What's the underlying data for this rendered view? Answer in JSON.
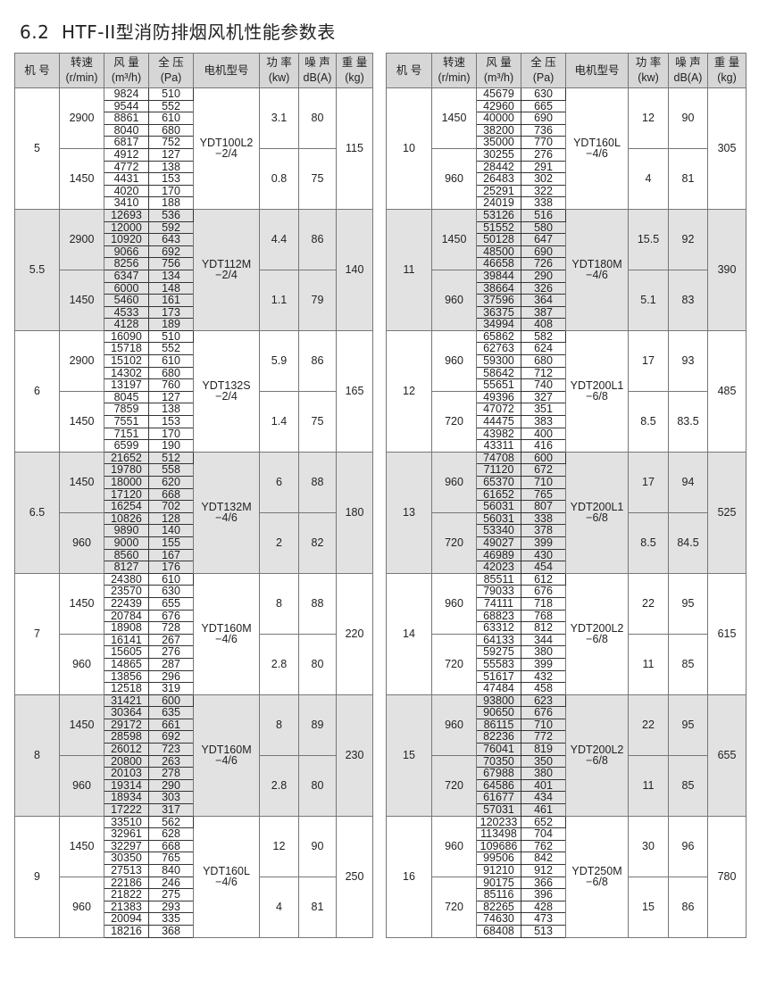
{
  "title": "6.2  HTF-II型消防排烟风机性能参数表",
  "headers": [
    [
      "机 号"
    ],
    [
      "转速",
      "(r/min)"
    ],
    [
      "风 量",
      "(m³/h)"
    ],
    [
      "全 压",
      "(Pa)"
    ],
    [
      "电机型号"
    ],
    [
      "功 率",
      "(kw)"
    ],
    [
      "噪 声",
      "dB(A)"
    ],
    [
      "重 量",
      "(kg)"
    ]
  ],
  "colors": {
    "header_bg": "#d6d6d6",
    "shade_bg": "#e2e2e2",
    "border": "#777777"
  },
  "tables": [
    {
      "machines": [
        {
          "no": "5",
          "motor": [
            "YDT100L2",
            "−2/4"
          ],
          "weight": "115",
          "speeds": [
            {
              "rpm": "2900",
              "power": "3.1",
              "noise": "80",
              "points": [
                [
                  "9824",
                  "510"
                ],
                [
                  "9544",
                  "552"
                ],
                [
                  "8861",
                  "610"
                ],
                [
                  "8040",
                  "680"
                ],
                [
                  "6817",
                  "752"
                ]
              ]
            },
            {
              "rpm": "1450",
              "power": "0.8",
              "noise": "75",
              "points": [
                [
                  "4912",
                  "127"
                ],
                [
                  "4772",
                  "138"
                ],
                [
                  "4431",
                  "153"
                ],
                [
                  "4020",
                  "170"
                ],
                [
                  "3410",
                  "188"
                ]
              ]
            }
          ]
        },
        {
          "no": "5.5",
          "motor": [
            "YDT112M",
            "−2/4"
          ],
          "weight": "140",
          "speeds": [
            {
              "rpm": "2900",
              "power": "4.4",
              "noise": "86",
              "points": [
                [
                  "12693",
                  "536"
                ],
                [
                  "12000",
                  "592"
                ],
                [
                  "10920",
                  "643"
                ],
                [
                  "9066",
                  "692"
                ],
                [
                  "8256",
                  "756"
                ]
              ]
            },
            {
              "rpm": "1450",
              "power": "1.1",
              "noise": "79",
              "points": [
                [
                  "6347",
                  "134"
                ],
                [
                  "6000",
                  "148"
                ],
                [
                  "5460",
                  "161"
                ],
                [
                  "4533",
                  "173"
                ],
                [
                  "4128",
                  "189"
                ]
              ]
            }
          ]
        },
        {
          "no": "6",
          "motor": [
            "YDT132S",
            "−2/4"
          ],
          "weight": "165",
          "speeds": [
            {
              "rpm": "2900",
              "power": "5.9",
              "noise": "86",
              "points": [
                [
                  "16090",
                  "510"
                ],
                [
                  "15718",
                  "552"
                ],
                [
                  "15102",
                  "610"
                ],
                [
                  "14302",
                  "680"
                ],
                [
                  "13197",
                  "760"
                ]
              ]
            },
            {
              "rpm": "1450",
              "power": "1.4",
              "noise": "75",
              "points": [
                [
                  "8045",
                  "127"
                ],
                [
                  "7859",
                  "138"
                ],
                [
                  "7551",
                  "153"
                ],
                [
                  "7151",
                  "170"
                ],
                [
                  "6599",
                  "190"
                ]
              ]
            }
          ]
        },
        {
          "no": "6.5",
          "motor": [
            "YDT132M",
            "−4/6"
          ],
          "weight": "180",
          "speeds": [
            {
              "rpm": "1450",
              "power": "6",
              "noise": "88",
              "points": [
                [
                  "21652",
                  "512"
                ],
                [
                  "19780",
                  "558"
                ],
                [
                  "18000",
                  "620"
                ],
                [
                  "17120",
                  "668"
                ],
                [
                  "16254",
                  "702"
                ]
              ]
            },
            {
              "rpm": "960",
              "power": "2",
              "noise": "82",
              "points": [
                [
                  "10826",
                  "128"
                ],
                [
                  "9890",
                  "140"
                ],
                [
                  "9000",
                  "155"
                ],
                [
                  "8560",
                  "167"
                ],
                [
                  "8127",
                  "176"
                ]
              ]
            }
          ]
        },
        {
          "no": "7",
          "motor": [
            "YDT160M",
            "−4/6"
          ],
          "weight": "220",
          "speeds": [
            {
              "rpm": "1450",
              "power": "8",
              "noise": "88",
              "points": [
                [
                  "24380",
                  "610"
                ],
                [
                  "23570",
                  "630"
                ],
                [
                  "22439",
                  "655"
                ],
                [
                  "20784",
                  "676"
                ],
                [
                  "18908",
                  "728"
                ]
              ]
            },
            {
              "rpm": "960",
              "power": "2.8",
              "noise": "80",
              "points": [
                [
                  "16141",
                  "267"
                ],
                [
                  "15605",
                  "276"
                ],
                [
                  "14865",
                  "287"
                ],
                [
                  "13856",
                  "296"
                ],
                [
                  "12518",
                  "319"
                ]
              ]
            }
          ]
        },
        {
          "no": "8",
          "motor": [
            "YDT160M",
            "−4/6"
          ],
          "weight": "230",
          "speeds": [
            {
              "rpm": "1450",
              "power": "8",
              "noise": "89",
              "points": [
                [
                  "31421",
                  "600"
                ],
                [
                  "30364",
                  "635"
                ],
                [
                  "29172",
                  "661"
                ],
                [
                  "28598",
                  "692"
                ],
                [
                  "26012",
                  "723"
                ]
              ]
            },
            {
              "rpm": "960",
              "power": "2.8",
              "noise": "80",
              "points": [
                [
                  "20800",
                  "263"
                ],
                [
                  "20103",
                  "278"
                ],
                [
                  "19314",
                  "290"
                ],
                [
                  "18934",
                  "303"
                ],
                [
                  "17222",
                  "317"
                ]
              ]
            }
          ]
        },
        {
          "no": "9",
          "motor": [
            "YDT160L",
            "−4/6"
          ],
          "weight": "250",
          "speeds": [
            {
              "rpm": "1450",
              "power": "12",
              "noise": "90",
              "points": [
                [
                  "33510",
                  "562"
                ],
                [
                  "32961",
                  "628"
                ],
                [
                  "32297",
                  "668"
                ],
                [
                  "30350",
                  "765"
                ],
                [
                  "27513",
                  "840"
                ]
              ]
            },
            {
              "rpm": "960",
              "power": "4",
              "noise": "81",
              "points": [
                [
                  "22186",
                  "246"
                ],
                [
                  "21822",
                  "275"
                ],
                [
                  "21383",
                  "293"
                ],
                [
                  "20094",
                  "335"
                ],
                [
                  "18216",
                  "368"
                ]
              ]
            }
          ]
        }
      ]
    },
    {
      "machines": [
        {
          "no": "10",
          "motor": [
            "YDT160L",
            "−4/6"
          ],
          "weight": "305",
          "speeds": [
            {
              "rpm": "1450",
              "power": "12",
              "noise": "90",
              "points": [
                [
                  "45679",
                  "630"
                ],
                [
                  "42960",
                  "665"
                ],
                [
                  "40000",
                  "690"
                ],
                [
                  "38200",
                  "736"
                ],
                [
                  "35000",
                  "770"
                ]
              ]
            },
            {
              "rpm": "960",
              "power": "4",
              "noise": "81",
              "points": [
                [
                  "30255",
                  "276"
                ],
                [
                  "28442",
                  "291"
                ],
                [
                  "26483",
                  "302"
                ],
                [
                  "25291",
                  "322"
                ],
                [
                  "24019",
                  "338"
                ]
              ]
            }
          ]
        },
        {
          "no": "11",
          "motor": [
            "YDT180M",
            "−4/6"
          ],
          "weight": "390",
          "speeds": [
            {
              "rpm": "1450",
              "power": "15.5",
              "noise": "92",
              "points": [
                [
                  "53126",
                  "516"
                ],
                [
                  "51552",
                  "580"
                ],
                [
                  "50128",
                  "647"
                ],
                [
                  "48500",
                  "690"
                ],
                [
                  "46658",
                  "726"
                ]
              ]
            },
            {
              "rpm": "960",
              "power": "5.1",
              "noise": "83",
              "points": [
                [
                  "39844",
                  "290"
                ],
                [
                  "38664",
                  "326"
                ],
                [
                  "37596",
                  "364"
                ],
                [
                  "36375",
                  "387"
                ],
                [
                  "34994",
                  "408"
                ]
              ]
            }
          ]
        },
        {
          "no": "12",
          "motor": [
            "YDT200L1",
            "−6/8"
          ],
          "weight": "485",
          "speeds": [
            {
              "rpm": "960",
              "power": "17",
              "noise": "93",
              "points": [
                [
                  "65862",
                  "582"
                ],
                [
                  "62763",
                  "624"
                ],
                [
                  "59300",
                  "680"
                ],
                [
                  "58642",
                  "712"
                ],
                [
                  "55651",
                  "740"
                ]
              ]
            },
            {
              "rpm": "720",
              "power": "8.5",
              "noise": "83.5",
              "points": [
                [
                  "49396",
                  "327"
                ],
                [
                  "47072",
                  "351"
                ],
                [
                  "44475",
                  "383"
                ],
                [
                  "43982",
                  "400"
                ],
                [
                  "43311",
                  "416"
                ]
              ]
            }
          ]
        },
        {
          "no": "13",
          "motor": [
            "YDT200L1",
            "−6/8"
          ],
          "weight": "525",
          "speeds": [
            {
              "rpm": "960",
              "power": "17",
              "noise": "94",
              "points": [
                [
                  "74708",
                  "600"
                ],
                [
                  "71120",
                  "672"
                ],
                [
                  "65370",
                  "710"
                ],
                [
                  "61652",
                  "765"
                ],
                [
                  "56031",
                  "807"
                ]
              ]
            },
            {
              "rpm": "720",
              "power": "8.5",
              "noise": "84.5",
              "points": [
                [
                  "56031",
                  "338"
                ],
                [
                  "53340",
                  "378"
                ],
                [
                  "49027",
                  "399"
                ],
                [
                  "46989",
                  "430"
                ],
                [
                  "42023",
                  "454"
                ]
              ]
            }
          ]
        },
        {
          "no": "14",
          "motor": [
            "YDT200L2",
            "−6/8"
          ],
          "weight": "615",
          "speeds": [
            {
              "rpm": "960",
              "power": "22",
              "noise": "95",
              "points": [
                [
                  "85511",
                  "612"
                ],
                [
                  "79033",
                  "676"
                ],
                [
                  "74111",
                  "718"
                ],
                [
                  "68823",
                  "768"
                ],
                [
                  "63312",
                  "812"
                ]
              ]
            },
            {
              "rpm": "720",
              "power": "11",
              "noise": "85",
              "points": [
                [
                  "64133",
                  "344"
                ],
                [
                  "59275",
                  "380"
                ],
                [
                  "55583",
                  "399"
                ],
                [
                  "51617",
                  "432"
                ],
                [
                  "47484",
                  "458"
                ]
              ]
            }
          ]
        },
        {
          "no": "15",
          "motor": [
            "YDT200L2",
            "−6/8"
          ],
          "weight": "655",
          "speeds": [
            {
              "rpm": "960",
              "power": "22",
              "noise": "95",
              "points": [
                [
                  "93800",
                  "623"
                ],
                [
                  "90650",
                  "676"
                ],
                [
                  "86115",
                  "710"
                ],
                [
                  "82236",
                  "772"
                ],
                [
                  "76041",
                  "819"
                ]
              ]
            },
            {
              "rpm": "720",
              "power": "11",
              "noise": "85",
              "points": [
                [
                  "70350",
                  "350"
                ],
                [
                  "67988",
                  "380"
                ],
                [
                  "64586",
                  "401"
                ],
                [
                  "61677",
                  "434"
                ],
                [
                  "57031",
                  "461"
                ]
              ]
            }
          ]
        },
        {
          "no": "16",
          "motor": [
            "YDT250M",
            "−6/8"
          ],
          "weight": "780",
          "speeds": [
            {
              "rpm": "960",
              "power": "30",
              "noise": "96",
              "points": [
                [
                  "120233",
                  "652"
                ],
                [
                  "113498",
                  "704"
                ],
                [
                  "109686",
                  "762"
                ],
                [
                  "99506",
                  "842"
                ],
                [
                  "91210",
                  "912"
                ]
              ]
            },
            {
              "rpm": "720",
              "power": "15",
              "noise": "86",
              "points": [
                [
                  "90175",
                  "366"
                ],
                [
                  "85116",
                  "396"
                ],
                [
                  "82265",
                  "428"
                ],
                [
                  "74630",
                  "473"
                ],
                [
                  "68408",
                  "513"
                ]
              ]
            }
          ]
        }
      ]
    }
  ]
}
